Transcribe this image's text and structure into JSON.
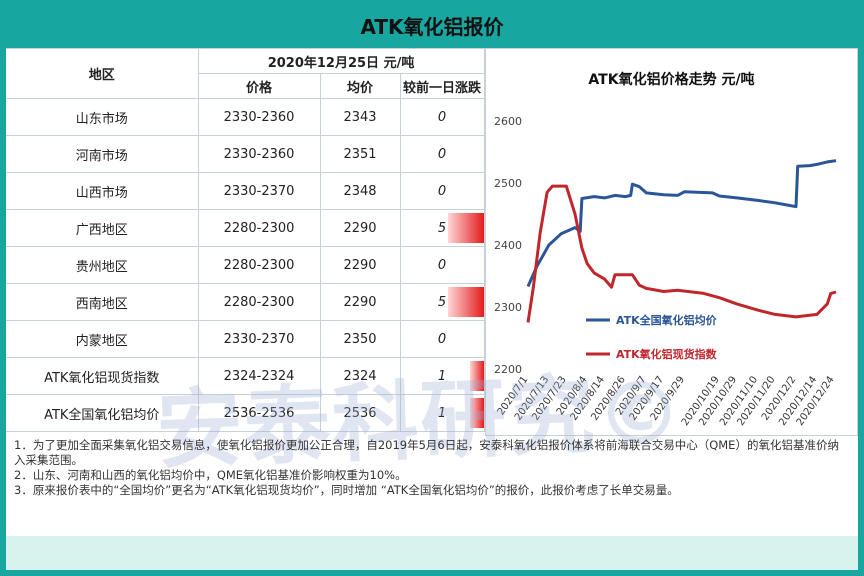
{
  "title": "ATK氧化铝报价",
  "table": {
    "region_header": "地区",
    "date_header": "2020年12月25日  元/吨",
    "columns": [
      "价格",
      "均价",
      "较前一日涨跌"
    ],
    "rows": [
      {
        "region": "山东市场",
        "price": "2330-2360",
        "avg": "2343",
        "change": "0",
        "change_value": 0
      },
      {
        "region": "河南市场",
        "price": "2330-2360",
        "avg": "2351",
        "change": "0",
        "change_value": 0
      },
      {
        "region": "山西市场",
        "price": "2330-2370",
        "avg": "2348",
        "change": "0",
        "change_value": 0
      },
      {
        "region": "广西地区",
        "price": "2280-2300",
        "avg": "2290",
        "change": "5",
        "change_value": 5
      },
      {
        "region": "贵州地区",
        "price": "2280-2300",
        "avg": "2290",
        "change": "0",
        "change_value": 0
      },
      {
        "region": "西南地区",
        "price": "2280-2300",
        "avg": "2290",
        "change": "5",
        "change_value": 5
      },
      {
        "region": "内蒙地区",
        "price": "2330-2370",
        "avg": "2350",
        "change": "0",
        "change_value": 0
      },
      {
        "region": "ATK氧化铝现货指数",
        "price": "2324-2324",
        "avg": "2324",
        "change": "1",
        "change_value": 1
      },
      {
        "region": "ATK全国氧化铝均价",
        "price": "2536-2536",
        "avg": "2536",
        "change": "1",
        "change_value": 1
      }
    ]
  },
  "watermark": "安泰科研究©",
  "chart_data": {
    "type": "line",
    "title": "ATK氧化铝价格走势  元/吨",
    "ylim": [
      2200,
      2600
    ],
    "yticks": [
      2200,
      2300,
      2400,
      2500,
      2600
    ],
    "xlim": [
      "2020-07-01",
      "2020-12-25"
    ],
    "xticks": [
      "2020/7/1",
      "2020/7/13",
      "2020/7/23",
      "2020/8/4",
      "2020/8/14",
      "2020/8/26",
      "2020/9/7",
      "2020/9/17",
      "2020/9/29",
      "2020/10/19",
      "2020/10/29",
      "2020/11/10",
      "2020/11/20",
      "2020/12/2",
      "2020/12/14",
      "2020/12/24"
    ],
    "legend_position": "inside-bottom",
    "series": [
      {
        "name": "ATK全国氧化铝均价",
        "color": "#2a5597",
        "points": [
          [
            "2020-07-01",
            2333
          ],
          [
            "2020-07-06",
            2365
          ],
          [
            "2020-07-13",
            2400
          ],
          [
            "2020-07-20",
            2418
          ],
          [
            "2020-07-28",
            2428
          ],
          [
            "2020-07-31",
            2422
          ],
          [
            "2020-08-01",
            2475
          ],
          [
            "2020-08-08",
            2478
          ],
          [
            "2020-08-14",
            2476
          ],
          [
            "2020-08-20",
            2480
          ],
          [
            "2020-08-26",
            2478
          ],
          [
            "2020-08-29",
            2480
          ],
          [
            "2020-08-30",
            2498
          ],
          [
            "2020-09-03",
            2494
          ],
          [
            "2020-09-07",
            2484
          ],
          [
            "2020-09-17",
            2481
          ],
          [
            "2020-09-25",
            2480
          ],
          [
            "2020-09-29",
            2486
          ],
          [
            "2020-10-15",
            2484
          ],
          [
            "2020-10-19",
            2479
          ],
          [
            "2020-10-29",
            2476
          ],
          [
            "2020-11-10",
            2472
          ],
          [
            "2020-11-20",
            2468
          ],
          [
            "2020-12-02",
            2462
          ],
          [
            "2020-12-03",
            2527
          ],
          [
            "2020-12-10",
            2528
          ],
          [
            "2020-12-14",
            2530
          ],
          [
            "2020-12-20",
            2534
          ],
          [
            "2020-12-25",
            2536
          ]
        ]
      },
      {
        "name": "ATK氧化铝现货指数",
        "color": "#c0272d",
        "points": [
          [
            "2020-07-01",
            2275
          ],
          [
            "2020-07-04",
            2330
          ],
          [
            "2020-07-08",
            2420
          ],
          [
            "2020-07-12",
            2485
          ],
          [
            "2020-07-15",
            2495
          ],
          [
            "2020-07-23",
            2495
          ],
          [
            "2020-07-28",
            2450
          ],
          [
            "2020-08-01",
            2395
          ],
          [
            "2020-08-04",
            2370
          ],
          [
            "2020-08-08",
            2355
          ],
          [
            "2020-08-14",
            2345
          ],
          [
            "2020-08-18",
            2332
          ],
          [
            "2020-08-20",
            2352
          ],
          [
            "2020-08-26",
            2352
          ],
          [
            "2020-08-30",
            2352
          ],
          [
            "2020-09-03",
            2335
          ],
          [
            "2020-09-07",
            2330
          ],
          [
            "2020-09-17",
            2325
          ],
          [
            "2020-09-25",
            2327
          ],
          [
            "2020-10-10",
            2322
          ],
          [
            "2020-10-19",
            2315
          ],
          [
            "2020-10-29",
            2305
          ],
          [
            "2020-11-10",
            2295
          ],
          [
            "2020-11-20",
            2288
          ],
          [
            "2020-12-02",
            2284
          ],
          [
            "2020-12-14",
            2288
          ],
          [
            "2020-12-20",
            2305
          ],
          [
            "2020-12-22",
            2322
          ],
          [
            "2020-12-25",
            2324
          ]
        ]
      }
    ]
  },
  "notes": [
    "1．为了更加全面采集氧化铝交易信息，使氧化铝报价更加公正合理，自2019年5月6日起，安泰科氧化铝报价体系将前海联合交易中心（QME）的氧化铝基准价纳入采集范围。",
    "2．山东、河南和山西的氧化铝均价中，QME氧化铝基准价影响权重为10%。",
    "3．原来报价表中的“全国均价”更名为“ATK氧化铝现货均价”，同时增加 “ATK全国氧化铝均价”的报价，此报价考虑了长单交易量。"
  ]
}
